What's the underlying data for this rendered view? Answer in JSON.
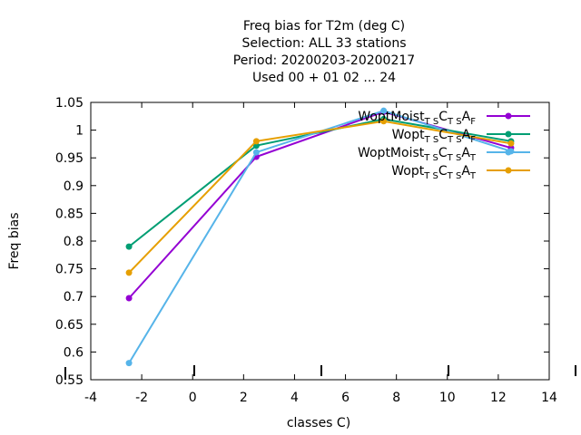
{
  "chart_data": {
    "type": "line",
    "title_lines": [
      "Freq bias  for T2m (deg C)",
      "Selection: ALL     33 stations",
      "Period: 20200203-20200217",
      "Used  00 + 01 02 ... 24"
    ],
    "xlabel": "classes C)",
    "ylabel": "Freq bias",
    "xlim": [
      -4,
      14
    ],
    "ylim": [
      0.55,
      1.05
    ],
    "xticks": [
      "-4",
      "-2",
      "0",
      "2",
      "4",
      "6",
      "8",
      "10",
      "12",
      "14"
    ],
    "yticks": [
      "0.55",
      "0.6",
      "0.65",
      "0.7",
      "0.75",
      "0.8",
      "0.85",
      "0.9",
      "0.95",
      "1",
      "1.05"
    ],
    "grid": false,
    "legend_position": "top-right",
    "x": [
      -2.5,
      2.5,
      7.5,
      12.5
    ],
    "series": [
      {
        "legend": {
          "base": "WoptMoist",
          "s1": "T S",
          "mid": "C",
          "s2": "T S",
          "end": "A",
          "s3": "F"
        },
        "color": "#9400d3",
        "values": [
          0.697,
          0.952,
          1.033,
          0.968
        ]
      },
      {
        "legend": {
          "base": "Wopt",
          "s1": "T S",
          "mid": "C",
          "s2": "T S",
          "end": "A",
          "s3": "F"
        },
        "color": "#009e73",
        "values": [
          0.79,
          0.972,
          1.02,
          0.98
        ]
      },
      {
        "legend": {
          "base": "WoptMoist",
          "s1": "T S",
          "mid": "C",
          "s2": "T S",
          "end": "A",
          "s3": "T"
        },
        "color": "#56b4e9",
        "values": [
          0.58,
          0.96,
          1.035,
          0.962
        ]
      },
      {
        "legend": {
          "base": "Wopt",
          "s1": "T S",
          "mid": "C",
          "s2": "T S",
          "end": "A",
          "s3": "T"
        },
        "color": "#e69f00",
        "values": [
          0.743,
          0.98,
          1.016,
          0.976
        ]
      }
    ]
  }
}
